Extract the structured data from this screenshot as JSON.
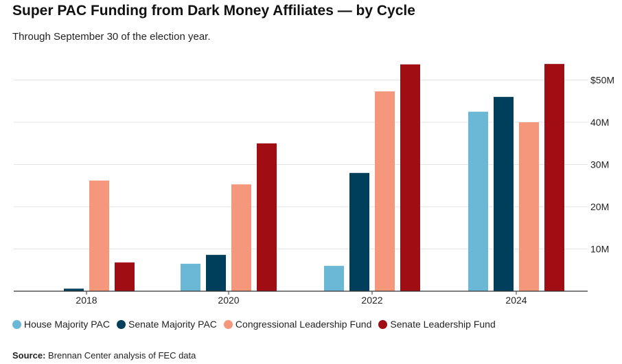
{
  "header": {
    "title": "Super PAC Funding from Dark Money Affiliates — by Cycle",
    "subtitle": "Through September 30 of the election year."
  },
  "source": {
    "label": "Source:",
    "text": "Brennan Center analysis of FEC data"
  },
  "chart_data": {
    "type": "bar",
    "title": "Super PAC Funding from Dark Money Affiliates — by Cycle",
    "subtitle": "Through September 30 of the election year.",
    "xlabel": "",
    "ylabel": "",
    "categories": [
      "2018",
      "2020",
      "2022",
      "2024"
    ],
    "ylim": [
      0,
      55
    ],
    "yticks": [
      10,
      20,
      30,
      40,
      50
    ],
    "ytick_labels": [
      "10M",
      "20M",
      "30M",
      "40M",
      "$50M"
    ],
    "y_axis_side": "right",
    "grid": true,
    "legend_position": "bottom",
    "series": [
      {
        "name": "House Majority PAC",
        "color": "#6bb8d6",
        "values": [
          0,
          6.5,
          6.0,
          42.5
        ]
      },
      {
        "name": "Senate Majority PAC",
        "color": "#003f5c",
        "values": [
          0.6,
          8.6,
          28.0,
          46.0
        ]
      },
      {
        "name": "Congressional Leadership Fund",
        "color": "#f4977a",
        "values": [
          26.2,
          25.3,
          47.3,
          40.0
        ]
      },
      {
        "name": "Senate Leadership Fund",
        "color": "#a00d12",
        "values": [
          6.8,
          35.0,
          53.7,
          53.8
        ]
      }
    ]
  }
}
